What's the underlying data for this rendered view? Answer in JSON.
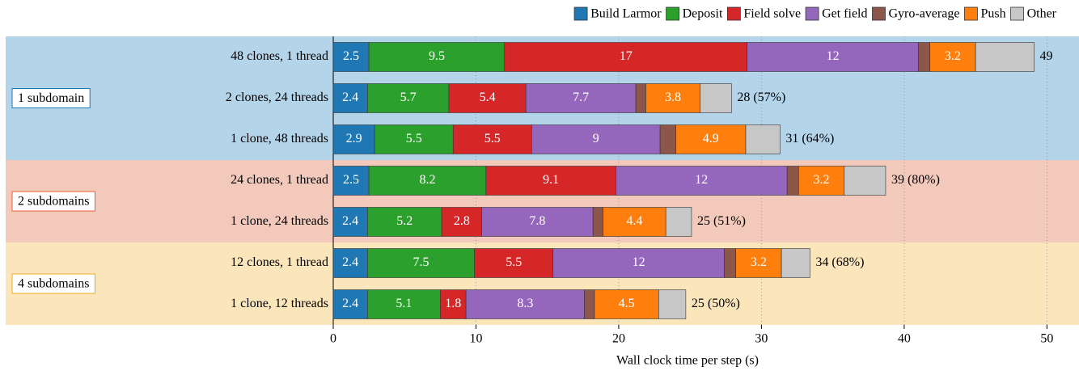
{
  "chart_data": {
    "type": "stacked-barh",
    "xlabel": "Wall clock time per step (s)",
    "categories": [
      "48 clones, 1 thread",
      "2 clones, 24 threads",
      "1 clone, 48 threads",
      "24 clones, 1 thread",
      "1 clone, 24 threads",
      "12 clones, 1 thread",
      "1 clone, 12 threads"
    ],
    "groups": [
      {
        "name": "1 subdomain",
        "rows": [
          0,
          2
        ],
        "color": "#b4d4ea",
        "edge": "#1f77b4"
      },
      {
        "name": "2 subdomains",
        "rows": [
          3,
          4
        ],
        "color": "#f3c9bc",
        "edge": "#e8603a"
      },
      {
        "name": "4 subdomains",
        "rows": [
          5,
          6
        ],
        "color": "#fbe6bb",
        "edge": "#f5a623"
      }
    ],
    "series": [
      {
        "name": "Build Larmor",
        "color": "#1f77b4",
        "show_values": true,
        "values": [
          2.5,
          2.4,
          2.9,
          2.5,
          2.4,
          2.4,
          2.4
        ]
      },
      {
        "name": "Deposit",
        "color": "#2ca02c",
        "show_values": true,
        "values": [
          9.5,
          5.7,
          5.5,
          8.2,
          5.2,
          7.5,
          5.1
        ]
      },
      {
        "name": "Field solve",
        "color": "#d62728",
        "show_values": true,
        "values": [
          17,
          5.4,
          5.5,
          9.1,
          2.8,
          5.5,
          1.8
        ]
      },
      {
        "name": "Get field",
        "color": "#9467bd",
        "show_values": true,
        "values": [
          12,
          7.7,
          9,
          12,
          7.8,
          12,
          8.3
        ]
      },
      {
        "name": "Gyro-average",
        "color": "#8c564b",
        "show_values": false,
        "values": [
          0.8,
          0.7,
          1.1,
          0.8,
          0.7,
          0.8,
          0.7
        ]
      },
      {
        "name": "Push",
        "color": "#ff7f0e",
        "show_values": true,
        "values": [
          3.2,
          3.8,
          4.9,
          3.2,
          4.4,
          3.2,
          4.5
        ]
      },
      {
        "name": "Other",
        "color": "#c7c7c7",
        "show_values": false,
        "values": [
          4.1,
          2.2,
          2.4,
          2.9,
          1.8,
          2.0,
          1.9
        ]
      }
    ],
    "total_labels": [
      "49",
      "28 (57%)",
      "31 (64%)",
      "39 (80%)",
      "25 (51%)",
      "34 (68%)",
      "25 (50%)"
    ],
    "xlim": [
      0,
      51
    ],
    "xticks": [
      0,
      10,
      20,
      30,
      40,
      50
    ],
    "grid": true,
    "legend": "top-right"
  }
}
